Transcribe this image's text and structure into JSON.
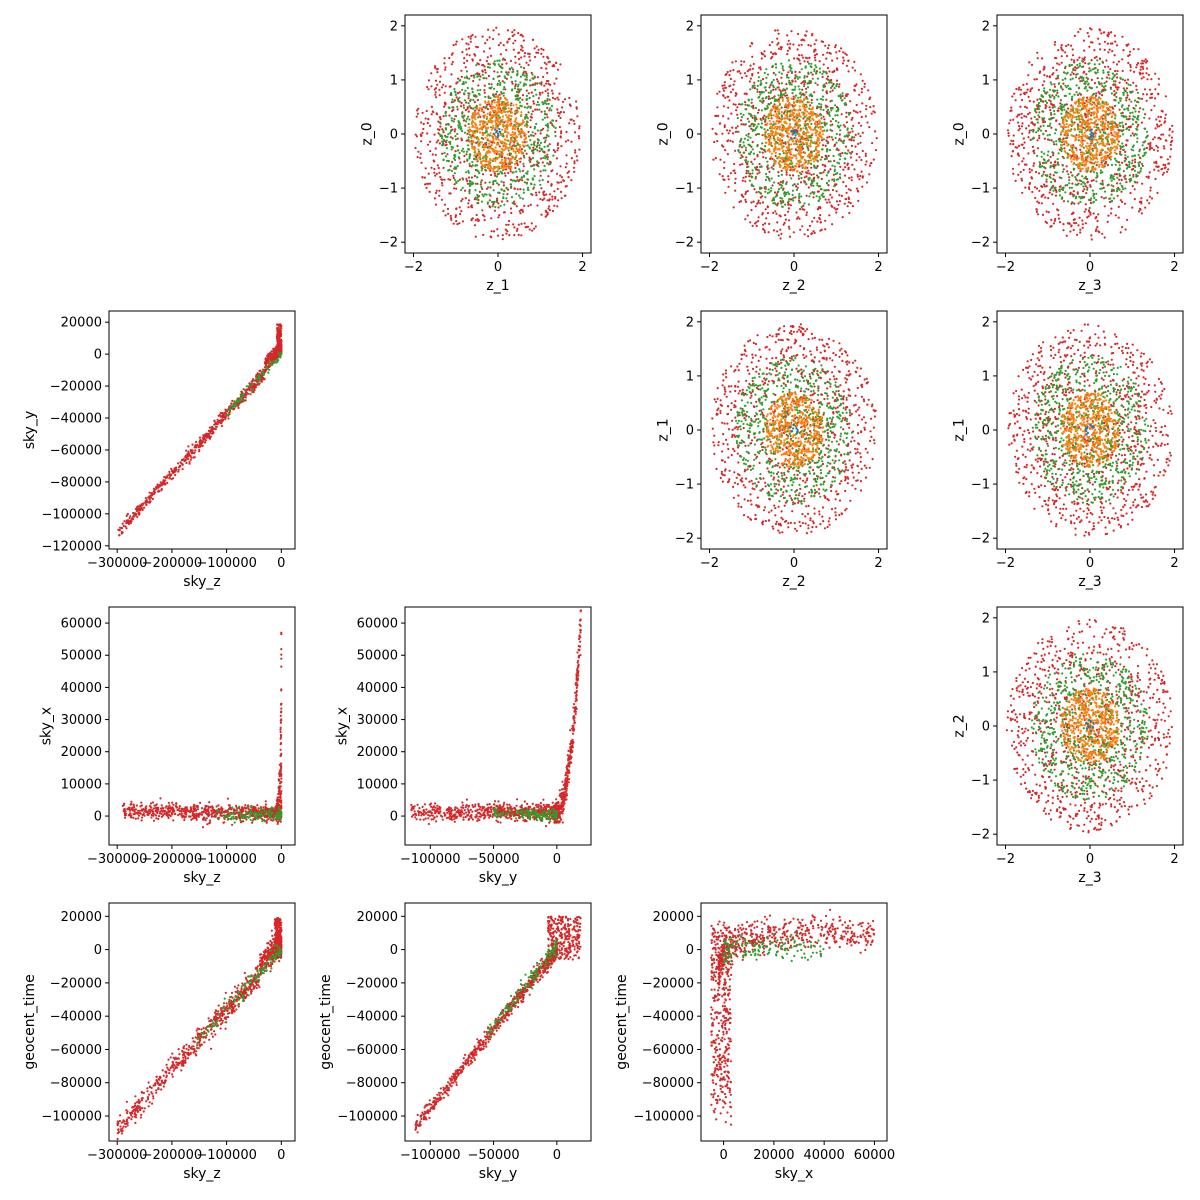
{
  "colors": {
    "red": "#d62728",
    "green": "#2ca02c",
    "orange": "#ff7f0e",
    "blue": "#1f77b4"
  },
  "chart_data": [
    {
      "type": "scatter",
      "row": 0,
      "col": 1,
      "xlabel": "z_1",
      "ylabel": "z_0",
      "xlim": [
        -2.2,
        2.2
      ],
      "ylim": [
        -2.2,
        2.2
      ],
      "xticks": [
        -2,
        0,
        2
      ],
      "xtick_labels": [
        "−2",
        "0",
        "2"
      ],
      "yticks": [
        -2,
        -1,
        0,
        1,
        2
      ],
      "ytick_labels": [
        "−2",
        "−1",
        "0",
        "1",
        "2"
      ],
      "kind": "disk",
      "seed": 11
    },
    {
      "type": "scatter",
      "row": 0,
      "col": 2,
      "xlabel": "z_2",
      "ylabel": "z_0",
      "xlim": [
        -2.2,
        2.2
      ],
      "ylim": [
        -2.2,
        2.2
      ],
      "xticks": [
        -2,
        0,
        2
      ],
      "xtick_labels": [
        "−2",
        "0",
        "2"
      ],
      "yticks": [
        -2,
        -1,
        0,
        1,
        2
      ],
      "ytick_labels": [
        "−2",
        "−1",
        "0",
        "1",
        "2"
      ],
      "kind": "disk",
      "seed": 12
    },
    {
      "type": "scatter",
      "row": 0,
      "col": 3,
      "xlabel": "z_3",
      "ylabel": "z_0",
      "xlim": [
        -2.2,
        2.2
      ],
      "ylim": [
        -2.2,
        2.2
      ],
      "xticks": [
        -2,
        0,
        2
      ],
      "xtick_labels": [
        "−2",
        "0",
        "2"
      ],
      "yticks": [
        -2,
        -1,
        0,
        1,
        2
      ],
      "ytick_labels": [
        "−2",
        "−1",
        "0",
        "1",
        "2"
      ],
      "kind": "disk",
      "seed": 13
    },
    {
      "type": "scatter",
      "row": 1,
      "col": 0,
      "xlabel": "sky_z",
      "ylabel": "sky_y",
      "xlim": [
        -315000,
        25000
      ],
      "ylim": [
        -122000,
        27000
      ],
      "xticks": [
        -300000,
        -200000,
        -100000,
        0
      ],
      "xtick_labels": [
        "−300000",
        "−200000",
        "−100000",
        "0"
      ],
      "yticks": [
        -120000,
        -100000,
        -80000,
        -60000,
        -40000,
        -20000,
        0,
        20000
      ],
      "ytick_labels": [
        "−120000",
        "−100000",
        "−80000",
        "−60000",
        "−40000",
        "−20000",
        "0",
        "20000"
      ],
      "kind": "zy",
      "seed": 21
    },
    {
      "type": "scatter",
      "row": 1,
      "col": 2,
      "xlabel": "z_2",
      "ylabel": "z_1",
      "xlim": [
        -2.2,
        2.2
      ],
      "ylim": [
        -2.2,
        2.2
      ],
      "xticks": [
        -2,
        0,
        2
      ],
      "xtick_labels": [
        "−2",
        "0",
        "2"
      ],
      "yticks": [
        -2,
        -1,
        0,
        1,
        2
      ],
      "ytick_labels": [
        "−2",
        "−1",
        "0",
        "1",
        "2"
      ],
      "kind": "disk",
      "seed": 22
    },
    {
      "type": "scatter",
      "row": 1,
      "col": 3,
      "xlabel": "z_3",
      "ylabel": "z_1",
      "xlim": [
        -2.2,
        2.2
      ],
      "ylim": [
        -2.2,
        2.2
      ],
      "xticks": [
        -2,
        0,
        2
      ],
      "xtick_labels": [
        "−2",
        "0",
        "2"
      ],
      "yticks": [
        -2,
        -1,
        0,
        1,
        2
      ],
      "ytick_labels": [
        "−2",
        "−1",
        "0",
        "1",
        "2"
      ],
      "kind": "disk",
      "seed": 23
    },
    {
      "type": "scatter",
      "row": 2,
      "col": 0,
      "xlabel": "sky_z",
      "ylabel": "sky_x",
      "xlim": [
        -315000,
        25000
      ],
      "ylim": [
        -9000,
        65000
      ],
      "xticks": [
        -300000,
        -200000,
        -100000,
        0
      ],
      "xtick_labels": [
        "−300000",
        "−200000",
        "−100000",
        "0"
      ],
      "yticks": [
        0,
        10000,
        20000,
        30000,
        40000,
        50000,
        60000
      ],
      "ytick_labels": [
        "0",
        "10000",
        "20000",
        "30000",
        "40000",
        "50000",
        "60000"
      ],
      "kind": "zx",
      "seed": 31
    },
    {
      "type": "scatter",
      "row": 2,
      "col": 1,
      "xlabel": "sky_y",
      "ylabel": "sky_x",
      "xlim": [
        -120000,
        27000
      ],
      "ylim": [
        -9000,
        65000
      ],
      "xticks": [
        -100000,
        -50000,
        0
      ],
      "xtick_labels": [
        "−100000",
        "−50000",
        "0"
      ],
      "yticks": [
        0,
        10000,
        20000,
        30000,
        40000,
        50000,
        60000
      ],
      "ytick_labels": [
        "0",
        "10000",
        "20000",
        "30000",
        "40000",
        "50000",
        "60000"
      ],
      "kind": "yx",
      "seed": 32
    },
    {
      "type": "scatter",
      "row": 2,
      "col": 3,
      "xlabel": "z_3",
      "ylabel": "z_2",
      "xlim": [
        -2.2,
        2.2
      ],
      "ylim": [
        -2.2,
        2.2
      ],
      "xticks": [
        -2,
        0,
        2
      ],
      "xtick_labels": [
        "−2",
        "0",
        "2"
      ],
      "yticks": [
        -2,
        -1,
        0,
        1,
        2
      ],
      "ytick_labels": [
        "−2",
        "−1",
        "0",
        "1",
        "2"
      ],
      "kind": "disk",
      "seed": 33
    },
    {
      "type": "scatter",
      "row": 3,
      "col": 0,
      "xlabel": "sky_z",
      "ylabel": "geocent_time",
      "xlim": [
        -315000,
        25000
      ],
      "ylim": [
        -115000,
        28000
      ],
      "xticks": [
        -300000,
        -200000,
        -100000,
        0
      ],
      "xtick_labels": [
        "−300000",
        "−200000",
        "−100000",
        "0"
      ],
      "yticks": [
        -100000,
        -80000,
        -60000,
        -40000,
        -20000,
        0,
        20000
      ],
      "ytick_labels": [
        "−100000",
        "−80000",
        "−60000",
        "−40000",
        "−20000",
        "0",
        "20000"
      ],
      "kind": "zt",
      "seed": 41
    },
    {
      "type": "scatter",
      "row": 3,
      "col": 1,
      "xlabel": "sky_y",
      "ylabel": "geocent_time",
      "xlim": [
        -120000,
        27000
      ],
      "ylim": [
        -115000,
        28000
      ],
      "xticks": [
        -100000,
        -50000,
        0
      ],
      "xtick_labels": [
        "−100000",
        "−50000",
        "0"
      ],
      "yticks": [
        -100000,
        -80000,
        -60000,
        -40000,
        -20000,
        0,
        20000
      ],
      "ytick_labels": [
        "−100000",
        "−80000",
        "−60000",
        "−40000",
        "−20000",
        "0",
        "20000"
      ],
      "kind": "yt",
      "seed": 42
    },
    {
      "type": "scatter",
      "row": 3,
      "col": 2,
      "xlabel": "sky_x",
      "ylabel": "geocent_time",
      "xlim": [
        -9000,
        65000
      ],
      "ylim": [
        -115000,
        28000
      ],
      "xticks": [
        0,
        20000,
        40000,
        60000
      ],
      "xtick_labels": [
        "0",
        "20000",
        "40000",
        "60000"
      ],
      "yticks": [
        -100000,
        -80000,
        -60000,
        -40000,
        -20000,
        0,
        20000
      ],
      "ytick_labels": [
        "−100000",
        "−80000",
        "−60000",
        "−40000",
        "−20000",
        "0",
        "20000"
      ],
      "kind": "xt",
      "seed": 43
    }
  ]
}
